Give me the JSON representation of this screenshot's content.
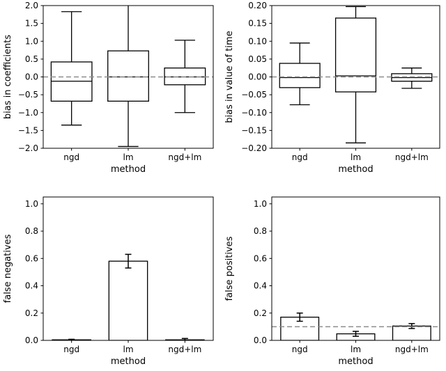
{
  "figure": {
    "bg": "#ffffff",
    "axis_color": "#000000",
    "text_color": "#000000",
    "refline_color": "#8c8c8c"
  },
  "chart_data": [
    {
      "id": "bias-in-coefficients",
      "type": "box",
      "xlabel": "method",
      "ylabel": "bias in coefficients",
      "categories": [
        "ngd",
        "lm",
        "ngd+lm"
      ],
      "ylim": [
        -2.0,
        2.0
      ],
      "yticks": [
        -2.0,
        -1.5,
        -1.0,
        -0.5,
        0.0,
        0.5,
        1.0,
        1.5,
        2.0
      ],
      "ytick_labels": [
        "−2.0",
        "−1.5",
        "−1.0",
        "−0.5",
        "0.0",
        "0.5",
        "1.0",
        "1.5",
        "2.0"
      ],
      "refline": 0.0,
      "boxes": [
        {
          "whislo": -1.35,
          "q1": -0.68,
          "med": -0.12,
          "q3": 0.42,
          "whishi": 1.83
        },
        {
          "whislo": -1.95,
          "q1": -0.68,
          "med": 0.0,
          "q3": 0.73,
          "whishi": 2.2
        },
        {
          "whislo": -1.0,
          "q1": -0.22,
          "med": 0.0,
          "q3": 0.25,
          "whishi": 1.03
        }
      ]
    },
    {
      "id": "bias-in-value-of-time",
      "type": "box",
      "xlabel": "method",
      "ylabel": "bias in value of time",
      "categories": [
        "ngd",
        "lm",
        "ngd+lm"
      ],
      "ylim": [
        -0.2,
        0.2
      ],
      "yticks": [
        -0.2,
        -0.15,
        -0.1,
        -0.05,
        0.0,
        0.05,
        0.1,
        0.15,
        0.2
      ],
      "ytick_labels": [
        "−0.20",
        "−0.15",
        "−0.10",
        "−0.05",
        "0.00",
        "0.05",
        "0.10",
        "0.15",
        "0.20"
      ],
      "refline": 0.0,
      "boxes": [
        {
          "whislo": -0.078,
          "q1": -0.03,
          "med": -0.002,
          "q3": 0.038,
          "whishi": 0.095
        },
        {
          "whislo": -0.185,
          "q1": -0.042,
          "med": 0.003,
          "q3": 0.165,
          "whishi": 0.197
        },
        {
          "whislo": -0.032,
          "q1": -0.012,
          "med": -0.002,
          "q3": 0.009,
          "whishi": 0.025
        }
      ]
    },
    {
      "id": "false-negatives",
      "type": "bar",
      "xlabel": "method",
      "ylabel": "false negatives",
      "categories": [
        "ngd",
        "lm",
        "ngd+lm"
      ],
      "ylim": [
        0,
        1.05
      ],
      "yticks": [
        0.0,
        0.2,
        0.4,
        0.6,
        0.8,
        1.0
      ],
      "ytick_labels": [
        "0.0",
        "0.2",
        "0.4",
        "0.6",
        "0.8",
        "1.0"
      ],
      "refline": null,
      "values": [
        0.004,
        0.58,
        0.004
      ],
      "errors": [
        0.004,
        0.05,
        0.01
      ]
    },
    {
      "id": "false-positives",
      "type": "bar",
      "xlabel": "method",
      "ylabel": "false positives",
      "categories": [
        "ngd",
        "lm",
        "ngd+lm"
      ],
      "ylim": [
        0,
        1.05
      ],
      "yticks": [
        0.0,
        0.2,
        0.4,
        0.6,
        0.8,
        1.0
      ],
      "ytick_labels": [
        "0.0",
        "0.2",
        "0.4",
        "0.6",
        "0.8",
        "1.0"
      ],
      "refline": 0.1,
      "values": [
        0.17,
        0.048,
        0.105
      ],
      "errors": [
        0.03,
        0.018,
        0.018
      ]
    }
  ]
}
